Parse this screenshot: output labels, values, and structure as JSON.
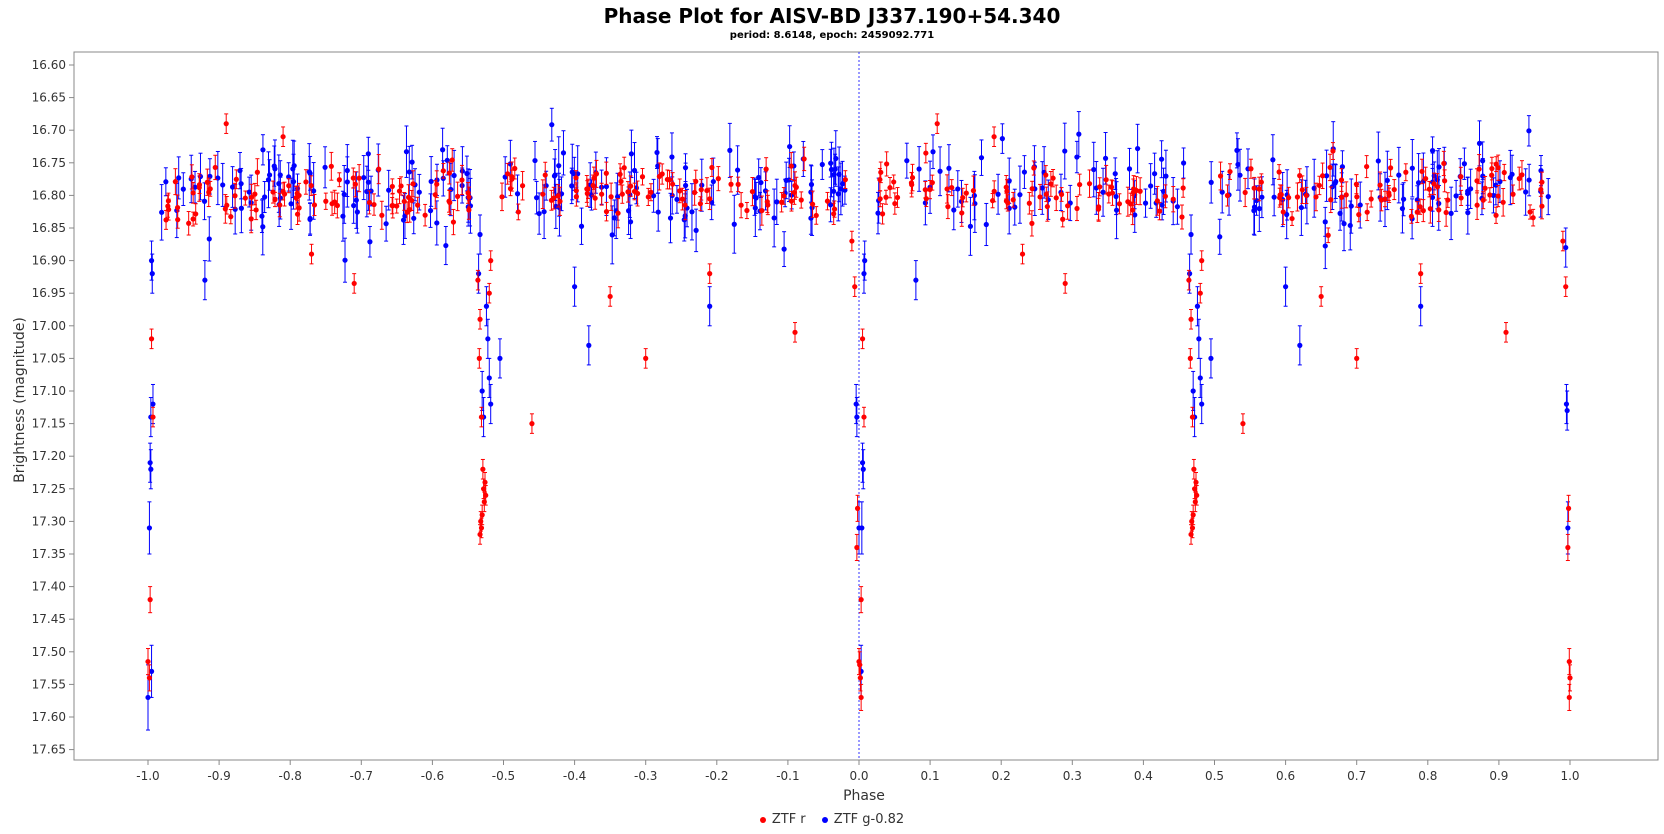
{
  "chart_data": {
    "type": "scatter",
    "title": "Phase Plot for AISV-BD J337.190+54.340",
    "subtitle": "period: 8.6148, epoch: 2459092.771",
    "xlabel": "Phase",
    "ylabel": "Brightness (magnitude)",
    "xlim": [
      -1.1,
      1.1
    ],
    "ylim": [
      16.59,
      17.69
    ],
    "y_inverted": true,
    "grid": false,
    "legend_position": "bottom",
    "x_ticks": [
      "-1.0",
      "-0.9",
      "-0.8",
      "-0.7",
      "-0.6",
      "-0.5",
      "-0.4",
      "-0.3",
      "-0.2",
      "-0.1",
      "0.0",
      "0.1",
      "0.2",
      "0.3",
      "0.4",
      "0.5",
      "0.6",
      "0.7",
      "0.8",
      "0.9",
      "1.0"
    ],
    "y_ticks": [
      "16.60",
      "16.65",
      "16.70",
      "16.75",
      "16.80",
      "16.85",
      "16.90",
      "16.95",
      "17.00",
      "17.05",
      "17.10",
      "17.15",
      "17.20",
      "17.25",
      "17.30",
      "17.35",
      "17.40",
      "17.45",
      "17.50",
      "17.55",
      "17.60",
      "17.65"
    ],
    "reference_line": {
      "x": 0.0,
      "style": "dotted",
      "color": "#3333ff"
    },
    "series": [
      {
        "name": "ZTF r",
        "color": "#ff0000",
        "baseline": {
          "mean": 16.795,
          "spread": 0.035,
          "count": 330,
          "error": 0.015
        },
        "eclipse_points": [
          {
            "x": 0.005,
            "y": 17.02,
            "err": 0.015
          },
          {
            "x": 0.007,
            "y": 17.14,
            "err": 0.015
          },
          {
            "x": 0.003,
            "y": 17.42,
            "err": 0.02
          },
          {
            "x": -0.002,
            "y": 17.28,
            "err": 0.02
          },
          {
            "x": -0.003,
            "y": 17.34,
            "err": 0.02
          },
          {
            "x": 0.0,
            "y": 17.515,
            "err": 0.02
          },
          {
            "x": 0.002,
            "y": 17.54,
            "err": 0.02
          },
          {
            "x": 0.003,
            "y": 17.57,
            "err": 0.02
          },
          {
            "x": 0.001,
            "y": 17.52,
            "err": 0.02
          },
          {
            "x": -0.006,
            "y": 16.94,
            "err": 0.015
          },
          {
            "x": -0.01,
            "y": 16.87,
            "err": 0.015
          },
          {
            "x": -0.536,
            "y": 16.93,
            "err": 0.015
          },
          {
            "x": -0.533,
            "y": 16.99,
            "err": 0.015
          },
          {
            "x": -0.534,
            "y": 17.05,
            "err": 0.015
          },
          {
            "x": -0.531,
            "y": 17.14,
            "err": 0.015
          },
          {
            "x": -0.529,
            "y": 17.22,
            "err": 0.015
          },
          {
            "x": -0.528,
            "y": 17.25,
            "err": 0.015
          },
          {
            "x": -0.527,
            "y": 17.27,
            "err": 0.015
          },
          {
            "x": -0.53,
            "y": 17.29,
            "err": 0.015
          },
          {
            "x": -0.531,
            "y": 17.31,
            "err": 0.015
          },
          {
            "x": -0.533,
            "y": 17.32,
            "err": 0.015
          },
          {
            "x": -0.526,
            "y": 17.24,
            "err": 0.015
          },
          {
            "x": -0.525,
            "y": 17.26,
            "err": 0.015
          },
          {
            "x": -0.532,
            "y": 17.3,
            "err": 0.015
          },
          {
            "x": -0.52,
            "y": 16.95,
            "err": 0.015
          },
          {
            "x": -0.518,
            "y": 16.9,
            "err": 0.015
          },
          {
            "x": -0.46,
            "y": 17.15,
            "err": 0.015
          },
          {
            "x": -0.35,
            "y": 16.955,
            "err": 0.015
          },
          {
            "x": -0.3,
            "y": 17.05,
            "err": 0.015
          },
          {
            "x": -0.21,
            "y": 16.92,
            "err": 0.015
          },
          {
            "x": -0.09,
            "y": 17.01,
            "err": 0.015
          },
          {
            "x": -0.71,
            "y": 16.935,
            "err": 0.015
          },
          {
            "x": -0.77,
            "y": 16.89,
            "err": 0.015
          },
          {
            "x": -0.81,
            "y": 16.71,
            "err": 0.015
          },
          {
            "x": -0.89,
            "y": 16.69,
            "err": 0.015
          },
          {
            "x": 0.11,
            "y": 16.69,
            "err": 0.015
          },
          {
            "x": 0.19,
            "y": 16.71,
            "err": 0.015
          },
          {
            "x": 0.23,
            "y": 16.89,
            "err": 0.015
          },
          {
            "x": 0.29,
            "y": 16.935,
            "err": 0.015
          },
          {
            "x": 0.464,
            "y": 16.93,
            "err": 0.015
          },
          {
            "x": 0.467,
            "y": 16.99,
            "err": 0.015
          },
          {
            "x": 0.466,
            "y": 17.05,
            "err": 0.015
          },
          {
            "x": 0.469,
            "y": 17.14,
            "err": 0.015
          },
          {
            "x": 0.471,
            "y": 17.22,
            "err": 0.015
          },
          {
            "x": 0.472,
            "y": 17.25,
            "err": 0.015
          },
          {
            "x": 0.473,
            "y": 17.27,
            "err": 0.015
          },
          {
            "x": 0.47,
            "y": 17.29,
            "err": 0.015
          },
          {
            "x": 0.469,
            "y": 17.31,
            "err": 0.015
          },
          {
            "x": 0.467,
            "y": 17.32,
            "err": 0.015
          },
          {
            "x": 0.474,
            "y": 17.24,
            "err": 0.015
          },
          {
            "x": 0.475,
            "y": 17.26,
            "err": 0.015
          },
          {
            "x": 0.468,
            "y": 17.3,
            "err": 0.015
          },
          {
            "x": 0.48,
            "y": 16.95,
            "err": 0.015
          },
          {
            "x": 0.482,
            "y": 16.9,
            "err": 0.015
          },
          {
            "x": 0.54,
            "y": 17.15,
            "err": 0.015
          },
          {
            "x": 0.65,
            "y": 16.955,
            "err": 0.015
          },
          {
            "x": 0.7,
            "y": 17.05,
            "err": 0.015
          },
          {
            "x": 0.79,
            "y": 16.92,
            "err": 0.015
          },
          {
            "x": 0.91,
            "y": 17.01,
            "err": 0.015
          },
          {
            "x": -0.995,
            "y": 17.02,
            "err": 0.015
          },
          {
            "x": -0.993,
            "y": 17.14,
            "err": 0.015
          },
          {
            "x": -0.997,
            "y": 17.42,
            "err": 0.02
          },
          {
            "x": -1.0,
            "y": 17.515,
            "err": 0.02
          },
          {
            "x": -0.998,
            "y": 17.54,
            "err": 0.02
          },
          {
            "x": 0.998,
            "y": 17.28,
            "err": 0.02
          },
          {
            "x": 0.997,
            "y": 17.34,
            "err": 0.02
          },
          {
            "x": 0.999,
            "y": 17.515,
            "err": 0.02
          },
          {
            "x": 1.0,
            "y": 17.54,
            "err": 0.02
          },
          {
            "x": 0.999,
            "y": 17.57,
            "err": 0.02
          },
          {
            "x": 0.994,
            "y": 16.94,
            "err": 0.015
          },
          {
            "x": 0.99,
            "y": 16.87,
            "err": 0.015
          }
        ]
      },
      {
        "name": "ZTF g-0.82",
        "color": "#0000ff",
        "baseline": {
          "mean": 16.79,
          "spread": 0.055,
          "count": 330,
          "error": 0.03
        },
        "eclipse_points": [
          {
            "x": -0.995,
            "y": 16.9,
            "err": 0.03
          },
          {
            "x": -0.994,
            "y": 16.92,
            "err": 0.03
          },
          {
            "x": -0.993,
            "y": 17.12,
            "err": 0.03
          },
          {
            "x": -0.996,
            "y": 17.14,
            "err": 0.03
          },
          {
            "x": -0.997,
            "y": 17.21,
            "err": 0.03
          },
          {
            "x": -0.996,
            "y": 17.22,
            "err": 0.03
          },
          {
            "x": -0.998,
            "y": 17.31,
            "err": 0.04
          },
          {
            "x": -0.995,
            "y": 17.53,
            "err": 0.04
          },
          {
            "x": -1.0,
            "y": 17.57,
            "err": 0.05
          },
          {
            "x": -0.92,
            "y": 16.93,
            "err": 0.03
          },
          {
            "x": 0.008,
            "y": 16.9,
            "err": 0.03
          },
          {
            "x": 0.007,
            "y": 16.92,
            "err": 0.03
          },
          {
            "x": -0.004,
            "y": 17.12,
            "err": 0.03
          },
          {
            "x": -0.003,
            "y": 17.14,
            "err": 0.03
          },
          {
            "x": 0.005,
            "y": 17.21,
            "err": 0.03
          },
          {
            "x": 0.006,
            "y": 17.22,
            "err": 0.03
          },
          {
            "x": 0.0,
            "y": 17.31,
            "err": 0.04
          },
          {
            "x": 0.004,
            "y": 17.31,
            "err": 0.04
          },
          {
            "x": 0.003,
            "y": 17.53,
            "err": 0.04
          },
          {
            "x": 0.08,
            "y": 16.93,
            "err": 0.03
          },
          {
            "x": -0.535,
            "y": 16.92,
            "err": 0.03
          },
          {
            "x": -0.533,
            "y": 16.86,
            "err": 0.03
          },
          {
            "x": -0.53,
            "y": 17.1,
            "err": 0.03
          },
          {
            "x": -0.528,
            "y": 17.14,
            "err": 0.03
          },
          {
            "x": -0.524,
            "y": 16.97,
            "err": 0.03
          },
          {
            "x": -0.522,
            "y": 17.02,
            "err": 0.03
          },
          {
            "x": -0.52,
            "y": 17.08,
            "err": 0.03
          },
          {
            "x": -0.518,
            "y": 17.12,
            "err": 0.03
          },
          {
            "x": -0.505,
            "y": 17.05,
            "err": 0.03
          },
          {
            "x": -0.4,
            "y": 16.94,
            "err": 0.03
          },
          {
            "x": -0.38,
            "y": 17.03,
            "err": 0.03
          },
          {
            "x": -0.21,
            "y": 16.97,
            "err": 0.03
          },
          {
            "x": 0.465,
            "y": 16.92,
            "err": 0.03
          },
          {
            "x": 0.467,
            "y": 16.86,
            "err": 0.03
          },
          {
            "x": 0.47,
            "y": 17.1,
            "err": 0.03
          },
          {
            "x": 0.472,
            "y": 17.14,
            "err": 0.03
          },
          {
            "x": 0.476,
            "y": 16.97,
            "err": 0.03
          },
          {
            "x": 0.478,
            "y": 17.02,
            "err": 0.03
          },
          {
            "x": 0.48,
            "y": 17.08,
            "err": 0.03
          },
          {
            "x": 0.482,
            "y": 17.12,
            "err": 0.03
          },
          {
            "x": 0.495,
            "y": 17.05,
            "err": 0.03
          },
          {
            "x": 0.6,
            "y": 16.94,
            "err": 0.03
          },
          {
            "x": 0.62,
            "y": 17.03,
            "err": 0.03
          },
          {
            "x": 0.79,
            "y": 16.97,
            "err": 0.03
          },
          {
            "x": 0.995,
            "y": 17.12,
            "err": 0.03
          },
          {
            "x": 0.996,
            "y": 17.13,
            "err": 0.03
          },
          {
            "x": 0.997,
            "y": 17.31,
            "err": 0.04
          },
          {
            "x": 0.994,
            "y": 16.88,
            "err": 0.03
          }
        ]
      }
    ]
  }
}
